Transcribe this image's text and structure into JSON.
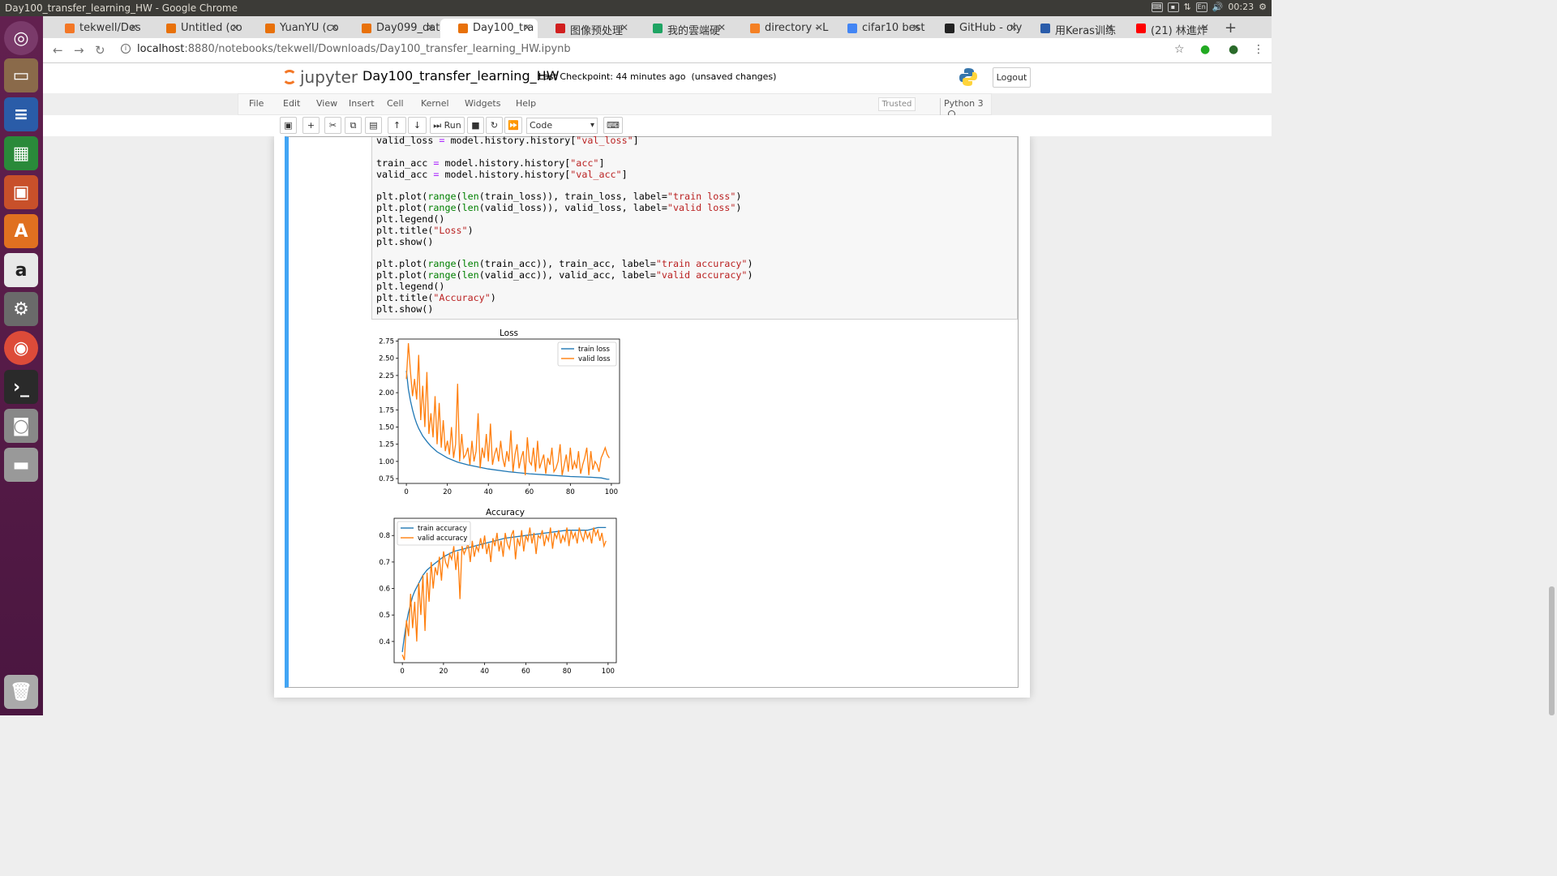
{
  "os": {
    "window_title": "Day100_transfer_learning_HW - Google Chrome",
    "clock": "00:23",
    "lang": "En"
  },
  "tabs": [
    {
      "label": "tekwell/Des",
      "icon_color": "#f37726",
      "icon": "jupyter-icon"
    },
    {
      "label": "Untitled (co",
      "icon_color": "#e8710a",
      "icon": "colab-icon"
    },
    {
      "label": "YuanYU (co",
      "icon_color": "#e8710a",
      "icon": "colab-icon"
    },
    {
      "label": "Day099_dat",
      "icon_color": "#e8710a",
      "icon": "colab-icon"
    },
    {
      "label": "Day100_tra",
      "icon_color": "#e8710a",
      "icon": "colab-icon"
    },
    {
      "label": "图像预处理",
      "icon_color": "#d11f1f",
      "icon": "k-icon"
    },
    {
      "label": "我的雲端硬",
      "icon_color": "#1fa463",
      "icon": "drive-icon"
    },
    {
      "label": "directory - L",
      "icon_color": "#f48024",
      "icon": "stackoverflow-icon"
    },
    {
      "label": "cifar10 best",
      "icon_color": "#4285f4",
      "icon": "google-icon"
    },
    {
      "label": "GitHub - oly",
      "icon_color": "#222222",
      "icon": "github-icon"
    },
    {
      "label": "用Keras训练",
      "icon_color": "#2a5caa",
      "icon": "d-icon"
    },
    {
      "label": "(21) 林進炸",
      "icon_color": "#ff0000",
      "icon": "youtube-icon"
    }
  ],
  "address": {
    "host": "localhost",
    "path": ":8880/notebooks/tekwell/Downloads/Day100_transfer_learning_HW.ipynb"
  },
  "jupyter": {
    "logo_text": "jupyter",
    "notebook_name": "Day100_transfer_learning_HW",
    "checkpoint": "Last Checkpoint: 44 minutes ago",
    "unsaved": "(unsaved changes)",
    "logout": "Logout",
    "menu": [
      "File",
      "Edit",
      "View",
      "Insert",
      "Cell",
      "Kernel",
      "Widgets",
      "Help"
    ],
    "trusted": "Trusted",
    "kernel": "Python 3",
    "run_label": "Run",
    "cell_type": "Code"
  },
  "code_lines": [
    "valid_loss = model.history.history[\"val_loss\"]",
    "",
    "train_acc = model.history.history[\"acc\"]",
    "valid_acc = model.history.history[\"val_acc\"]",
    "",
    "plt.plot(range(len(train_loss)), train_loss, label=\"train loss\")",
    "plt.plot(range(len(valid_loss)), valid_loss, label=\"valid loss\")",
    "plt.legend()",
    "plt.title(\"Loss\")",
    "plt.show()",
    "",
    "plt.plot(range(len(train_acc)), train_acc, label=\"train accuracy\")",
    "plt.plot(range(len(valid_acc)), valid_acc, label=\"valid accuracy\")",
    "plt.legend()",
    "plt.title(\"Accuracy\")",
    "plt.show()"
  ],
  "chart_data": [
    {
      "type": "line",
      "title": "Loss",
      "xlim": [
        -4,
        104
      ],
      "ylim": [
        0.68,
        2.78
      ],
      "xticks": [
        0,
        20,
        40,
        60,
        80,
        100
      ],
      "yticks": [
        0.75,
        1.0,
        1.25,
        1.5,
        1.75,
        2.0,
        2.25,
        2.5,
        2.75
      ],
      "ytick_labels": [
        "0.75",
        "1.00",
        "1.25",
        "1.50",
        "1.75",
        "2.00",
        "2.25",
        "2.50",
        "2.75"
      ],
      "legend": "top-right",
      "series": [
        {
          "name": "train loss",
          "color": "#1f77b4",
          "x": [
            0,
            1,
            2,
            3,
            4,
            5,
            6,
            8,
            10,
            12,
            15,
            20,
            25,
            30,
            40,
            50,
            60,
            70,
            80,
            90,
            95,
            98,
            99
          ],
          "y": [
            2.32,
            2.05,
            1.88,
            1.75,
            1.64,
            1.55,
            1.48,
            1.37,
            1.29,
            1.22,
            1.14,
            1.05,
            0.99,
            0.95,
            0.89,
            0.85,
            0.82,
            0.8,
            0.78,
            0.77,
            0.76,
            0.74,
            0.74
          ]
        },
        {
          "name": "valid loss",
          "color": "#ff7f0e",
          "x": [
            0,
            1,
            2,
            3,
            4,
            5,
            6,
            7,
            8,
            9,
            10,
            11,
            12,
            13,
            14,
            15,
            16,
            17,
            18,
            19,
            20,
            21,
            22,
            23,
            24,
            25,
            26,
            27,
            28,
            29,
            30,
            31,
            32,
            33,
            34,
            35,
            36,
            37,
            38,
            39,
            40,
            41,
            42,
            43,
            44,
            45,
            46,
            47,
            48,
            49,
            50,
            51,
            52,
            53,
            54,
            55,
            56,
            57,
            58,
            59,
            60,
            61,
            62,
            63,
            64,
            65,
            66,
            67,
            68,
            69,
            70,
            71,
            72,
            73,
            74,
            75,
            76,
            77,
            78,
            79,
            80,
            81,
            82,
            83,
            84,
            85,
            86,
            87,
            88,
            89,
            90,
            91,
            92,
            93,
            94,
            95,
            96,
            97,
            98,
            99
          ],
          "y": [
            2.2,
            2.72,
            2.3,
            1.95,
            2.2,
            1.9,
            2.55,
            1.6,
            2.1,
            1.5,
            2.3,
            1.4,
            1.7,
            1.35,
            1.95,
            1.25,
            1.85,
            1.2,
            1.6,
            1.15,
            1.3,
            1.1,
            1.5,
            1.05,
            1.25,
            2.13,
            1.0,
            1.4,
            1.05,
            1.1,
            1.2,
            0.95,
            1.3,
            1.0,
            1.15,
            1.7,
            0.9,
            1.2,
            1.05,
            1.4,
            1.0,
            1.55,
            0.95,
            1.1,
            1.2,
            1.0,
            1.3,
            1.05,
            0.92,
            1.15,
            1.0,
            1.45,
            0.85,
            1.1,
            1.25,
            0.9,
            1.05,
            1.15,
            0.8,
            1.35,
            1.0,
            0.95,
            1.2,
            0.85,
            1.3,
            0.9,
            1.0,
            1.1,
            0.82,
            1.05,
            0.95,
            1.2,
            0.85,
            0.9,
            1.0,
            1.25,
            0.8,
            0.95,
            1.1,
            0.85,
            1.2,
            0.88,
            1.0,
            0.9,
            1.15,
            0.82,
            0.95,
            1.05,
            1.2,
            0.8,
            1.15,
            0.88,
            1.0,
            0.95,
            0.85,
            1.05,
            1.12,
            1.2,
            1.1,
            1.05
          ]
        }
      ]
    },
    {
      "type": "line",
      "title": "Accuracy",
      "xlim": [
        -4,
        104
      ],
      "ylim": [
        0.32,
        0.865
      ],
      "xticks": [
        0,
        20,
        40,
        60,
        80,
        100
      ],
      "yticks": [
        0.4,
        0.5,
        0.6,
        0.7,
        0.8
      ],
      "ytick_labels": [
        "0.4",
        "0.5",
        "0.6",
        "0.7",
        "0.8"
      ],
      "legend": "top-left",
      "series": [
        {
          "name": "train accuracy",
          "color": "#1f77b4",
          "x": [
            0,
            1,
            2,
            3,
            4,
            5,
            6,
            8,
            10,
            12,
            15,
            20,
            25,
            30,
            40,
            50,
            60,
            70,
            80,
            90,
            95,
            98,
            99
          ],
          "y": [
            0.36,
            0.42,
            0.47,
            0.51,
            0.54,
            0.57,
            0.59,
            0.62,
            0.65,
            0.67,
            0.69,
            0.72,
            0.74,
            0.75,
            0.77,
            0.79,
            0.8,
            0.81,
            0.82,
            0.82,
            0.83,
            0.83,
            0.83
          ]
        },
        {
          "name": "valid accuracy",
          "color": "#ff7f0e",
          "x": [
            0,
            1,
            2,
            3,
            4,
            5,
            6,
            7,
            8,
            9,
            10,
            11,
            12,
            13,
            14,
            15,
            16,
            17,
            18,
            19,
            20,
            21,
            22,
            23,
            24,
            25,
            26,
            27,
            28,
            29,
            30,
            31,
            32,
            33,
            34,
            35,
            36,
            37,
            38,
            39,
            40,
            41,
            42,
            43,
            44,
            45,
            46,
            47,
            48,
            49,
            50,
            51,
            52,
            53,
            54,
            55,
            56,
            57,
            58,
            59,
            60,
            61,
            62,
            63,
            64,
            65,
            66,
            67,
            68,
            69,
            70,
            71,
            72,
            73,
            74,
            75,
            76,
            77,
            78,
            79,
            80,
            81,
            82,
            83,
            84,
            85,
            86,
            87,
            88,
            89,
            90,
            91,
            92,
            93,
            94,
            95,
            96,
            97,
            98,
            99
          ],
          "y": [
            0.35,
            0.33,
            0.48,
            0.42,
            0.58,
            0.45,
            0.55,
            0.4,
            0.62,
            0.5,
            0.65,
            0.44,
            0.66,
            0.55,
            0.7,
            0.6,
            0.68,
            0.65,
            0.72,
            0.63,
            0.74,
            0.7,
            0.68,
            0.73,
            0.71,
            0.76,
            0.67,
            0.74,
            0.56,
            0.76,
            0.73,
            0.75,
            0.77,
            0.7,
            0.78,
            0.72,
            0.76,
            0.74,
            0.79,
            0.75,
            0.8,
            0.73,
            0.77,
            0.7,
            0.79,
            0.76,
            0.81,
            0.74,
            0.78,
            0.72,
            0.81,
            0.77,
            0.75,
            0.8,
            0.82,
            0.71,
            0.79,
            0.76,
            0.82,
            0.74,
            0.8,
            0.78,
            0.83,
            0.77,
            0.81,
            0.73,
            0.8,
            0.79,
            0.82,
            0.76,
            0.8,
            0.78,
            0.83,
            0.75,
            0.81,
            0.79,
            0.82,
            0.77,
            0.8,
            0.78,
            0.83,
            0.76,
            0.82,
            0.79,
            0.81,
            0.77,
            0.83,
            0.8,
            0.78,
            0.82,
            0.79,
            0.81,
            0.77,
            0.83,
            0.8,
            0.82,
            0.78,
            0.81,
            0.76,
            0.78
          ]
        }
      ]
    }
  ]
}
